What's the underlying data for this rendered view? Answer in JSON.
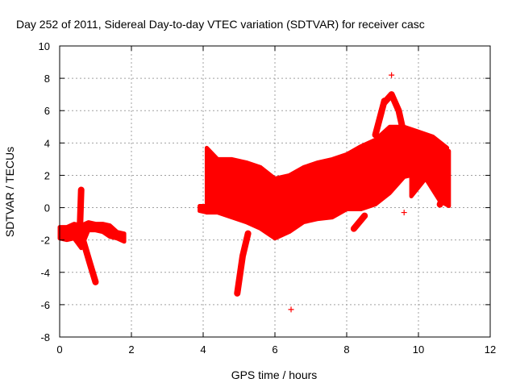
{
  "chart_data": {
    "type": "scatter",
    "title": "Day 252 of 2011, Sidereal Day-to-day VTEC variation (SDTVAR) for receiver casc",
    "xlabel": "GPS time / hours",
    "ylabel": "SDTVAR / TECUs",
    "xlim": [
      0,
      12
    ],
    "ylim": [
      -8,
      10
    ],
    "xticks": [
      "0",
      "2",
      "4",
      "6",
      "8",
      "10",
      "12"
    ],
    "yticks": [
      "-8",
      "-6",
      "-4",
      "-2",
      "0",
      "2",
      "4",
      "6",
      "8",
      "10"
    ],
    "grid": true,
    "marker": "+",
    "color": "#ff0000",
    "bands": [
      {
        "name": "early",
        "points": [
          [
            0.0,
            -1.9,
            -1.2
          ],
          [
            0.2,
            -2.0,
            -1.2
          ],
          [
            0.4,
            -1.9,
            -1.0
          ],
          [
            0.6,
            -2.5,
            -1.1
          ],
          [
            0.8,
            -1.4,
            -0.9
          ],
          [
            1.0,
            -1.4,
            -1.0
          ],
          [
            1.2,
            -1.5,
            -1.0
          ],
          [
            1.4,
            -1.8,
            -1.1
          ],
          [
            1.6,
            -1.9,
            -1.5
          ],
          [
            1.8,
            -2.1,
            -1.6
          ]
        ]
      },
      {
        "name": "main",
        "points": [
          [
            4.1,
            -0.3,
            3.7
          ],
          [
            4.4,
            -0.3,
            3.0
          ],
          [
            4.8,
            -0.6,
            3.0
          ],
          [
            5.2,
            -0.9,
            2.8
          ],
          [
            5.6,
            -1.3,
            2.5
          ],
          [
            6.0,
            -1.9,
            1.8
          ],
          [
            6.4,
            -1.5,
            2.0
          ],
          [
            6.8,
            -0.9,
            2.5
          ],
          [
            7.2,
            -0.7,
            2.8
          ],
          [
            7.6,
            -0.6,
            3.0
          ],
          [
            8.0,
            -0.1,
            3.3
          ],
          [
            8.4,
            -0.1,
            3.8
          ],
          [
            8.8,
            0.2,
            4.2
          ],
          [
            9.2,
            0.9,
            5.0
          ],
          [
            9.6,
            1.9,
            5.0
          ],
          [
            10.0,
            2.1,
            4.7
          ],
          [
            10.4,
            2.2,
            4.4
          ],
          [
            10.8,
            2.0,
            3.7
          ]
        ]
      },
      {
        "name": "left-plateau",
        "points": [
          [
            3.9,
            -0.2,
            0.1
          ],
          [
            4.1,
            -0.3,
            0.1
          ]
        ]
      },
      {
        "name": "right-tail",
        "points": [
          [
            9.8,
            0.7,
            1.9
          ],
          [
            10.2,
            1.8,
            2.4
          ],
          [
            10.6,
            0.4,
            2.6
          ],
          [
            10.85,
            0.1,
            3.5
          ]
        ]
      }
    ],
    "strokes": [
      {
        "name": "spike-up",
        "points": [
          [
            0.55,
            -2.2
          ],
          [
            0.6,
            1.1
          ]
        ]
      },
      {
        "name": "dip-down",
        "points": [
          [
            0.65,
            -2.0
          ],
          [
            0.85,
            -3.5
          ],
          [
            1.0,
            -4.6
          ]
        ]
      },
      {
        "name": "drop-negative",
        "points": [
          [
            4.95,
            -5.3
          ],
          [
            5.1,
            -3.0
          ],
          [
            5.25,
            -1.6
          ]
        ]
      },
      {
        "name": "peak-loop",
        "points": [
          [
            9.05,
            6.5
          ],
          [
            9.25,
            7.0
          ],
          [
            9.45,
            6.0
          ],
          [
            9.6,
            4.5
          ]
        ]
      },
      {
        "name": "peak-rise",
        "points": [
          [
            8.8,
            4.5
          ],
          [
            9.05,
            6.6
          ]
        ]
      },
      {
        "name": "late-drop",
        "points": [
          [
            8.2,
            -1.3
          ],
          [
            8.5,
            -0.5
          ]
        ]
      },
      {
        "name": "cascade-tail",
        "points": [
          [
            10.6,
            0.2
          ],
          [
            10.8,
            1.3
          ]
        ]
      }
    ],
    "outliers": [
      [
        9.25,
        8.2
      ],
      [
        9.6,
        -0.3
      ],
      [
        6.45,
        -6.3
      ]
    ]
  }
}
